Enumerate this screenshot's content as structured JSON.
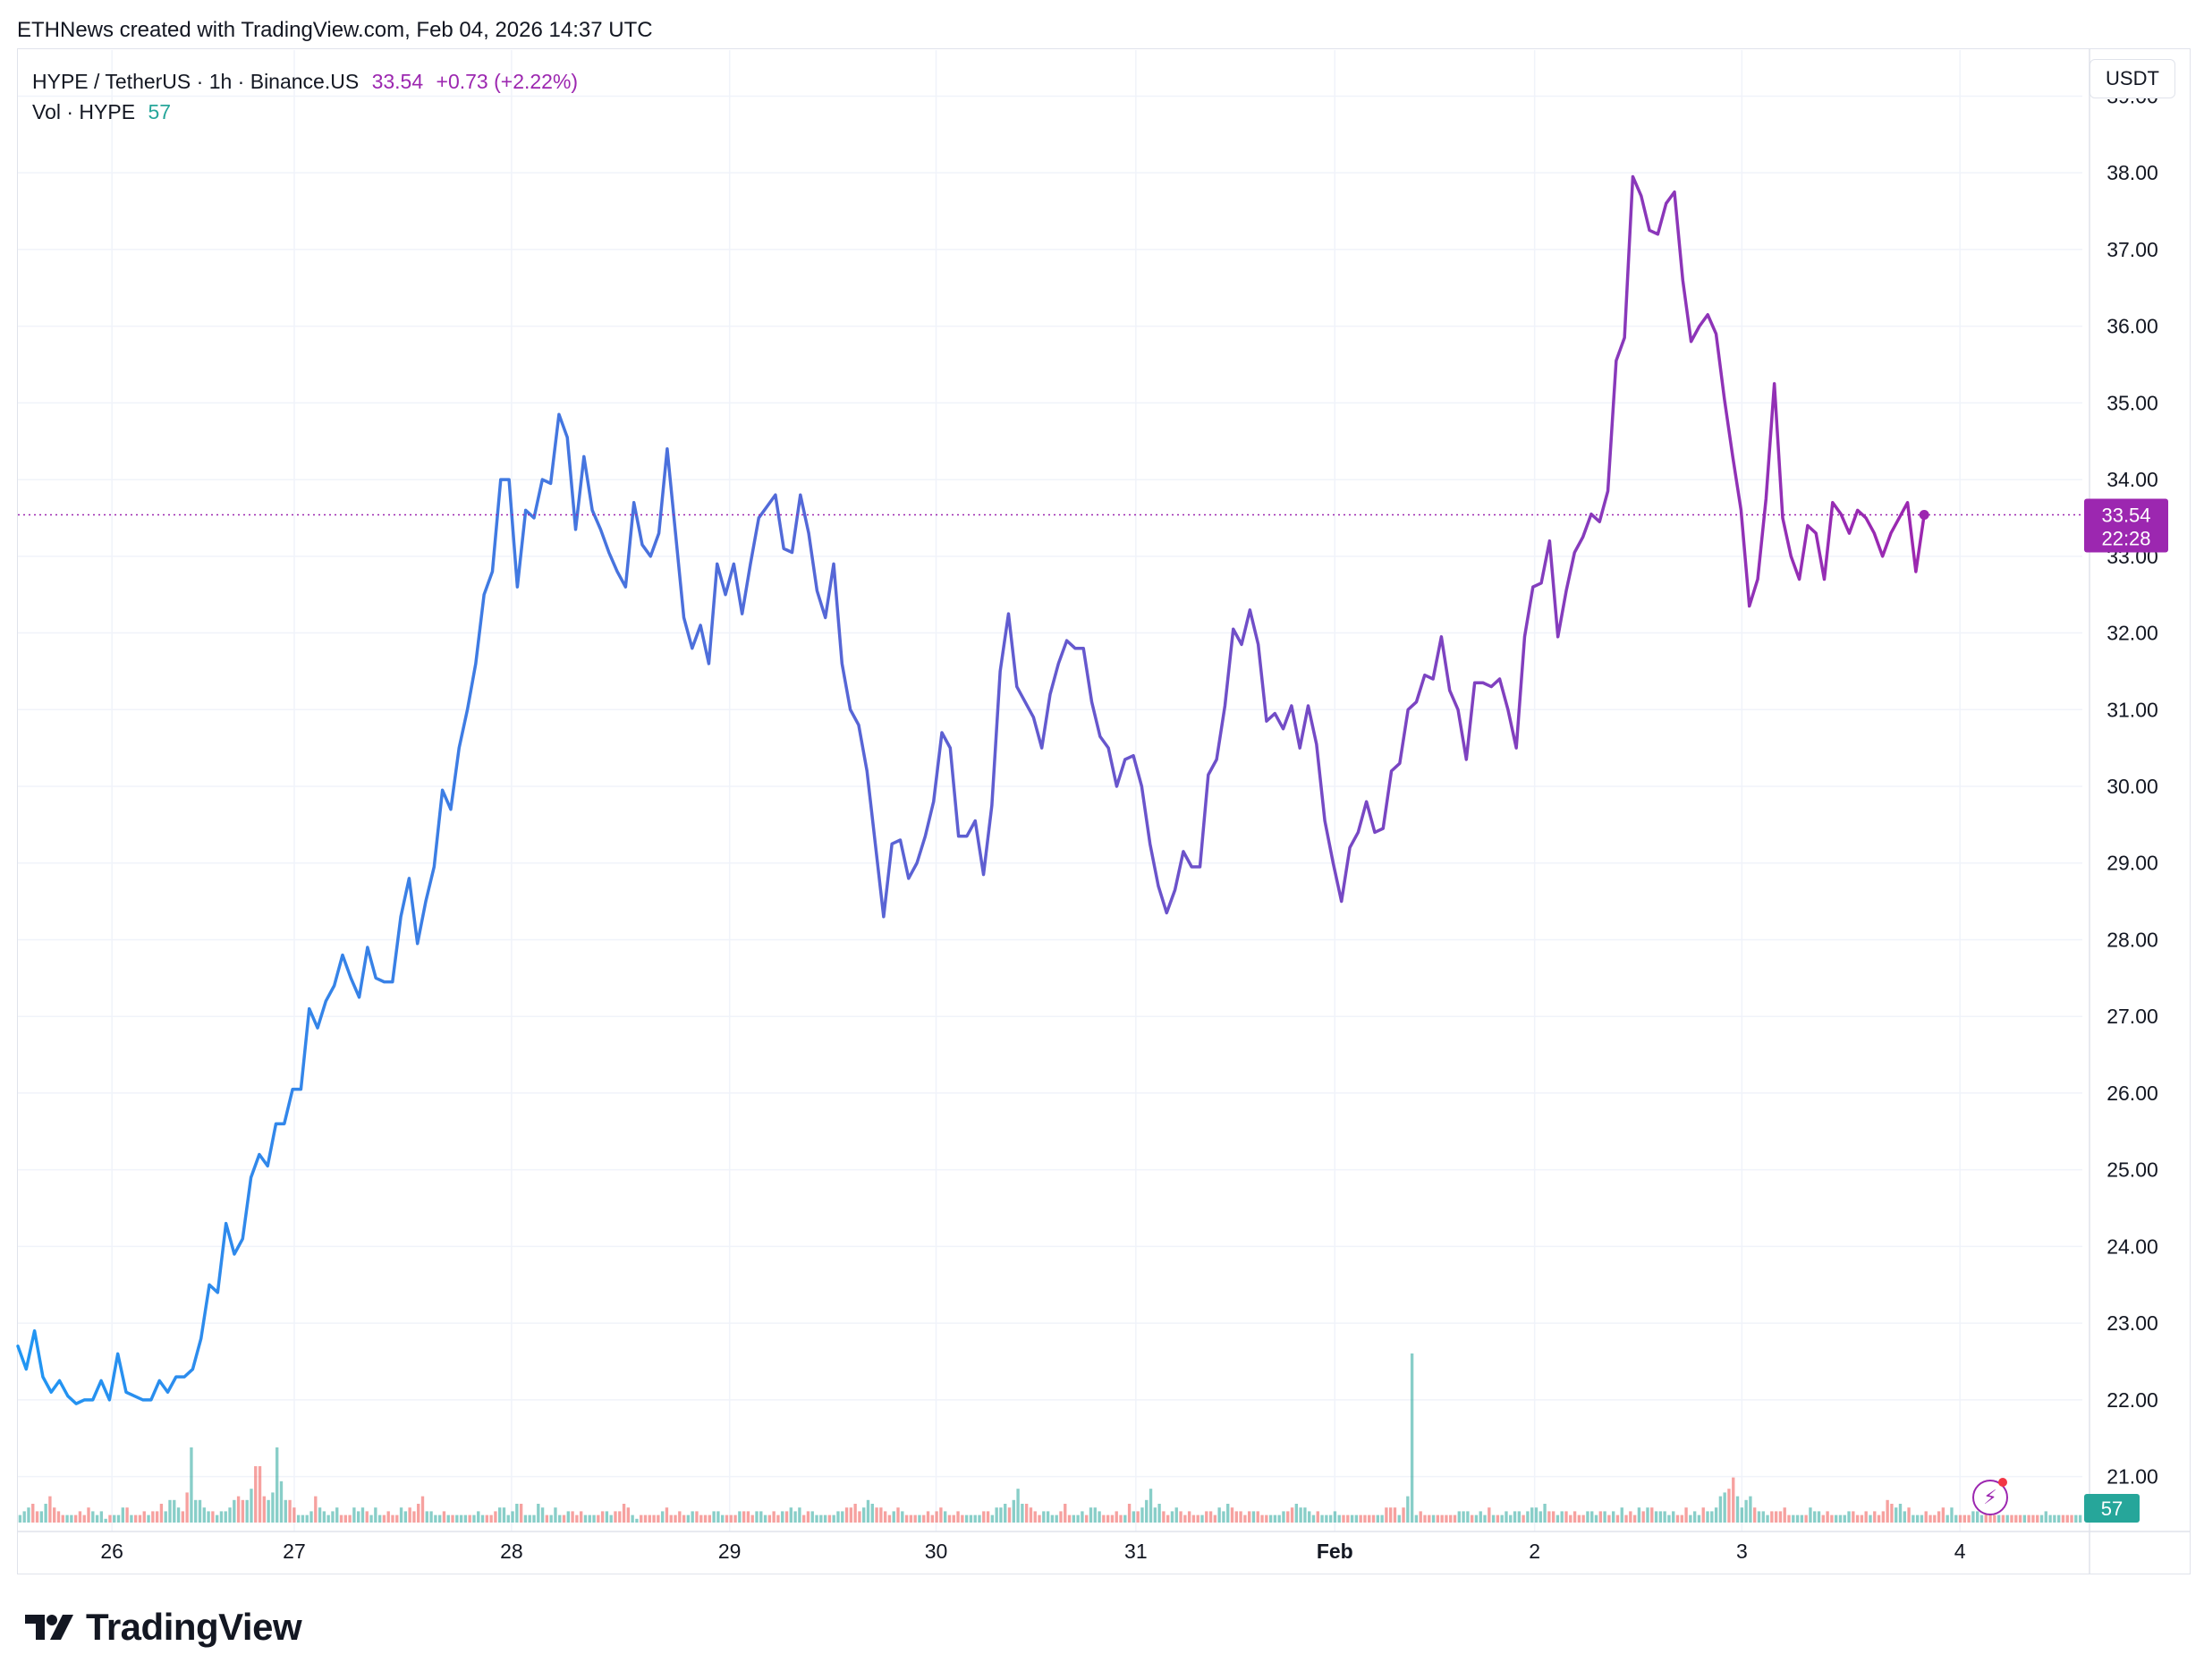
{
  "credit": "ETHNews created with TradingView.com, Feb 04, 2026 14:37 UTC",
  "legend": {
    "symbol": "HYPE / TetherUS · 1h · Binance.US",
    "price": "33.54",
    "change": "+0.73 (+2.22%)",
    "vol_label": "Vol · HYPE",
    "vol_value": "57"
  },
  "currency": "USDT",
  "price_tag": {
    "price": "33.54",
    "countdown": "22:28"
  },
  "volume_tag": "57",
  "brand": "TradingView",
  "colors": {
    "line_start": "#2196f3",
    "line_end": "#9c27b0",
    "vol_up": "#26a69a",
    "vol_down": "#ef5350",
    "price_tag": "#9c27b0",
    "grid": "#f0f3fa"
  },
  "icons": [
    "tradingview-logo-icon",
    "lightning-icon"
  ],
  "chart_data": {
    "type": "line",
    "interval": "1h",
    "ylim": [
      20.4,
      39.6
    ],
    "yticks": [
      "39.00",
      "38.00",
      "37.00",
      "36.00",
      "35.00",
      "34.00",
      "33.00",
      "32.00",
      "31.00",
      "30.00",
      "29.00",
      "28.00",
      "27.00",
      "26.00",
      "25.00",
      "24.00",
      "23.00",
      "22.00",
      "21.00"
    ],
    "x_tick_labels": [
      {
        "label": "26",
        "pos": 11.3,
        "bold": false
      },
      {
        "label": "27",
        "pos": 33.2,
        "bold": false
      },
      {
        "label": "28",
        "pos": 59.3,
        "bold": false
      },
      {
        "label": "29",
        "pos": 85.5,
        "bold": false
      },
      {
        "label": "30",
        "pos": 110.3,
        "bold": false
      },
      {
        "label": "31",
        "pos": 134.3,
        "bold": false
      },
      {
        "label": "Feb",
        "pos": 158.2,
        "bold": true
      },
      {
        "label": "2",
        "pos": 182.2,
        "bold": false
      },
      {
        "label": "3",
        "pos": 207.1,
        "bold": false
      },
      {
        "label": "4",
        "pos": 233.3,
        "bold": false
      }
    ],
    "x_range": [
      0,
      248
    ],
    "current_price": 33.54,
    "series": [
      {
        "values": [
          22.7,
          22.4,
          22.9,
          22.3,
          22.1,
          22.25,
          22.05,
          21.95,
          22.0,
          22.0,
          22.25,
          22.0,
          22.6,
          22.1,
          22.05,
          22.0,
          22.0,
          22.25,
          22.1,
          22.3,
          22.3,
          22.4,
          22.8,
          23.5,
          23.4,
          24.3,
          23.9,
          24.1,
          24.9,
          25.2,
          25.05,
          25.6,
          25.6,
          26.05,
          26.05,
          27.1,
          26.85,
          27.2,
          27.4,
          27.8,
          27.5,
          27.25,
          27.9,
          27.5,
          27.45,
          27.45,
          28.3,
          28.8,
          27.95,
          28.5,
          28.95,
          29.95,
          29.7,
          30.5,
          31.0,
          31.6,
          32.5,
          32.8,
          34.0,
          34.0,
          32.6,
          33.6,
          33.5,
          34.0,
          33.95,
          34.85,
          34.55,
          33.35,
          34.3,
          33.6,
          33.35,
          33.05,
          32.8,
          32.6,
          33.7,
          33.15,
          33.0,
          33.3,
          34.4,
          33.3,
          32.2,
          31.8,
          32.1,
          31.6,
          32.9,
          32.5,
          32.9,
          32.25,
          32.9,
          33.5,
          33.65,
          33.8,
          33.1,
          33.05,
          33.8,
          33.3,
          32.55,
          32.2,
          32.9,
          31.6,
          31.0,
          30.8,
          30.2,
          29.25,
          28.3,
          29.25,
          29.3,
          28.8,
          29.0,
          29.35,
          29.8,
          30.7,
          30.5,
          29.35,
          29.35,
          29.55,
          28.85,
          29.75,
          31.5,
          32.25,
          31.3,
          31.1,
          30.9,
          30.5,
          31.2,
          31.6,
          31.9,
          31.8,
          31.8,
          31.1,
          30.65,
          30.5,
          30.0,
          30.35,
          30.4,
          30.0,
          29.25,
          28.7,
          28.35,
          28.65,
          29.15,
          28.95,
          28.95,
          30.15,
          30.35,
          31.05,
          32.05,
          31.85,
          32.3,
          31.85,
          30.85,
          30.95,
          30.75,
          31.05,
          30.5,
          31.05,
          30.55,
          29.55,
          29.0,
          28.5,
          29.2,
          29.4,
          29.8,
          29.4,
          29.45,
          30.2,
          30.3,
          31.0,
          31.1,
          31.45,
          31.4,
          31.95,
          31.25,
          31.0,
          30.35,
          31.35,
          31.35,
          31.3,
          31.4,
          31.0,
          30.5,
          31.95,
          32.6,
          32.65,
          33.2,
          31.95,
          32.55,
          33.05,
          33.25,
          33.55,
          33.45,
          33.85,
          35.55,
          35.85,
          37.95,
          37.7,
          37.25,
          37.2,
          37.6,
          37.75,
          36.6,
          35.8,
          36.0,
          36.15,
          35.9,
          35.05,
          34.3,
          33.6,
          32.35,
          32.7,
          33.75,
          35.25,
          33.5,
          33.0,
          32.7,
          33.4,
          33.3,
          32.7,
          33.7,
          33.55,
          33.3,
          33.6,
          33.5,
          33.3,
          33.0,
          33.3,
          33.5,
          33.7,
          32.8,
          33.54
        ]
      }
    ],
    "volume_series": {
      "name": "Vol · HYPE",
      "ymax": 50,
      "values": [
        1,
        1.5,
        2,
        2.5,
        1.5,
        1.5,
        2.5,
        3.5,
        2,
        1.5,
        1,
        1,
        1,
        1,
        1.5,
        1,
        2,
        1.5,
        1,
        1.5,
        0.5,
        1,
        1,
        1,
        2,
        2,
        1,
        1,
        1,
        1.5,
        1,
        1.5,
        1.5,
        2.5,
        1.5,
        3,
        3,
        2,
        1.5,
        4,
        10,
        3,
        3,
        2,
        1.5,
        1.5,
        1,
        1.5,
        1.5,
        2,
        3,
        3.5,
        3,
        3,
        4.5,
        7.5,
        7.5,
        3.5,
        3,
        4,
        10,
        5.5,
        3,
        3,
        2,
        1,
        1,
        1,
        1.5,
        3.5,
        2,
        1.5,
        1,
        1.5,
        2,
        1,
        1,
        1,
        2,
        1.5,
        2,
        1.5,
        1,
        2,
        1,
        1,
        1.5,
        1,
        1,
        2,
        1.5,
        2,
        1.5,
        2.5,
        3.5,
        1.5,
        1.5,
        1,
        1,
        1.5,
        1,
        1,
        1,
        1,
        1,
        1,
        1,
        1.5,
        1,
        1,
        1,
        1.5,
        2,
        2,
        1,
        1.5,
        2.5,
        2.5,
        1,
        1,
        1,
        2.5,
        2,
        1,
        1,
        2,
        1,
        1,
        1.5,
        1.5,
        1,
        1.5,
        1,
        1,
        1,
        1,
        1.5,
        1.5,
        1,
        1.5,
        1.5,
        2.5,
        2,
        1,
        0.5,
        1,
        1,
        1,
        1,
        1,
        1.5,
        2,
        1,
        1,
        1.5,
        1,
        1,
        1.5,
        1.5,
        1,
        1,
        1,
        1.5,
        1.5,
        1,
        1,
        1,
        1,
        1.5,
        1.5,
        1.5,
        1,
        1.5,
        1.5,
        1,
        1,
        1.5,
        1,
        1.5,
        1.5,
        2,
        1.5,
        2,
        1,
        1.5,
        1.5,
        1,
        1,
        1,
        1,
        1,
        1.5,
        1.5,
        2,
        2,
        2.5,
        1.5,
        2,
        3,
        2.5,
        2,
        2,
        1.5,
        1,
        1.5,
        2,
        1.5,
        1,
        1,
        1,
        1,
        1,
        1.5,
        1,
        1.5,
        2,
        1.5,
        1,
        1,
        1.5,
        1,
        1,
        1,
        1,
        1,
        1.5,
        1.5,
        1,
        2,
        2,
        2.5,
        2,
        3,
        4.5,
        2.5,
        2.5,
        2,
        1.5,
        1,
        1.5,
        1.5,
        1,
        1,
        1.5,
        2.5,
        1,
        1,
        1,
        1.5,
        1,
        2,
        2,
        1.5,
        1,
        1,
        1,
        1.5,
        1,
        1,
        2.5,
        1.5,
        1.5,
        2,
        3,
        4.5,
        2,
        2.5,
        1.5,
        1,
        1.5,
        2,
        1.5,
        1,
        1.5,
        1,
        1,
        1,
        1.5,
        1.5,
        1,
        2,
        1.5,
        2.5,
        2,
        1.5,
        1.5,
        1,
        1.5,
        1.5,
        1.5,
        1,
        1,
        1,
        1,
        1,
        1.5,
        1.5,
        2,
        2.5,
        2,
        2,
        1.5,
        1,
        1.5,
        1,
        1,
        1,
        1.5,
        1,
        1,
        1,
        1,
        1,
        1,
        1,
        1,
        1,
        1,
        1,
        2,
        2,
        2,
        1,
        2,
        3.5,
        22.5,
        1,
        1.5,
        1,
        1,
        1,
        1,
        1,
        1,
        1,
        1,
        1.5,
        1.5,
        1.5,
        1,
        1,
        1.5,
        1,
        2,
        1,
        1,
        1,
        1.5,
        1,
        1.5,
        1.5,
        1,
        1.5,
        2,
        2,
        1.5,
        2.5,
        1.5,
        1.5,
        1,
        1.5,
        1.5,
        1,
        1.5,
        1,
        1,
        1.5,
        1.5,
        1,
        1.5,
        1.5,
        1,
        1.5,
        1,
        2,
        1,
        1.5,
        1,
        2,
        1.5,
        2,
        2,
        1.5,
        1.5,
        1.5,
        1,
        1.5,
        1,
        1,
        2,
        1,
        1.5,
        1,
        2,
        1.5,
        1.5,
        2,
        3.5,
        4,
        4.5,
        6,
        3.5,
        2,
        3,
        3.5,
        2,
        1.5,
        1.5,
        1,
        1.5,
        1.5,
        1.5,
        2,
        1,
        1,
        1,
        1,
        1,
        2,
        1.5,
        1.5,
        1,
        1.5,
        1,
        1,
        1,
        1,
        1.5,
        1.5,
        1,
        1,
        1.5,
        1,
        1.5,
        1,
        1.5,
        3,
        2.5,
        2,
        2.5,
        1.5,
        2,
        1,
        1,
        1,
        1.5,
        1,
        1,
        1.5,
        2,
        1,
        2,
        1,
        1,
        1,
        1,
        1.5,
        1.5,
        1,
        1.5,
        1.5,
        1,
        1,
        1,
        1,
        1,
        1,
        1,
        1,
        1,
        1,
        1,
        1,
        1.5,
        1,
        1,
        1,
        1,
        1,
        1,
        1,
        1
      ],
      "directions_note": "up/down per bar"
    }
  }
}
